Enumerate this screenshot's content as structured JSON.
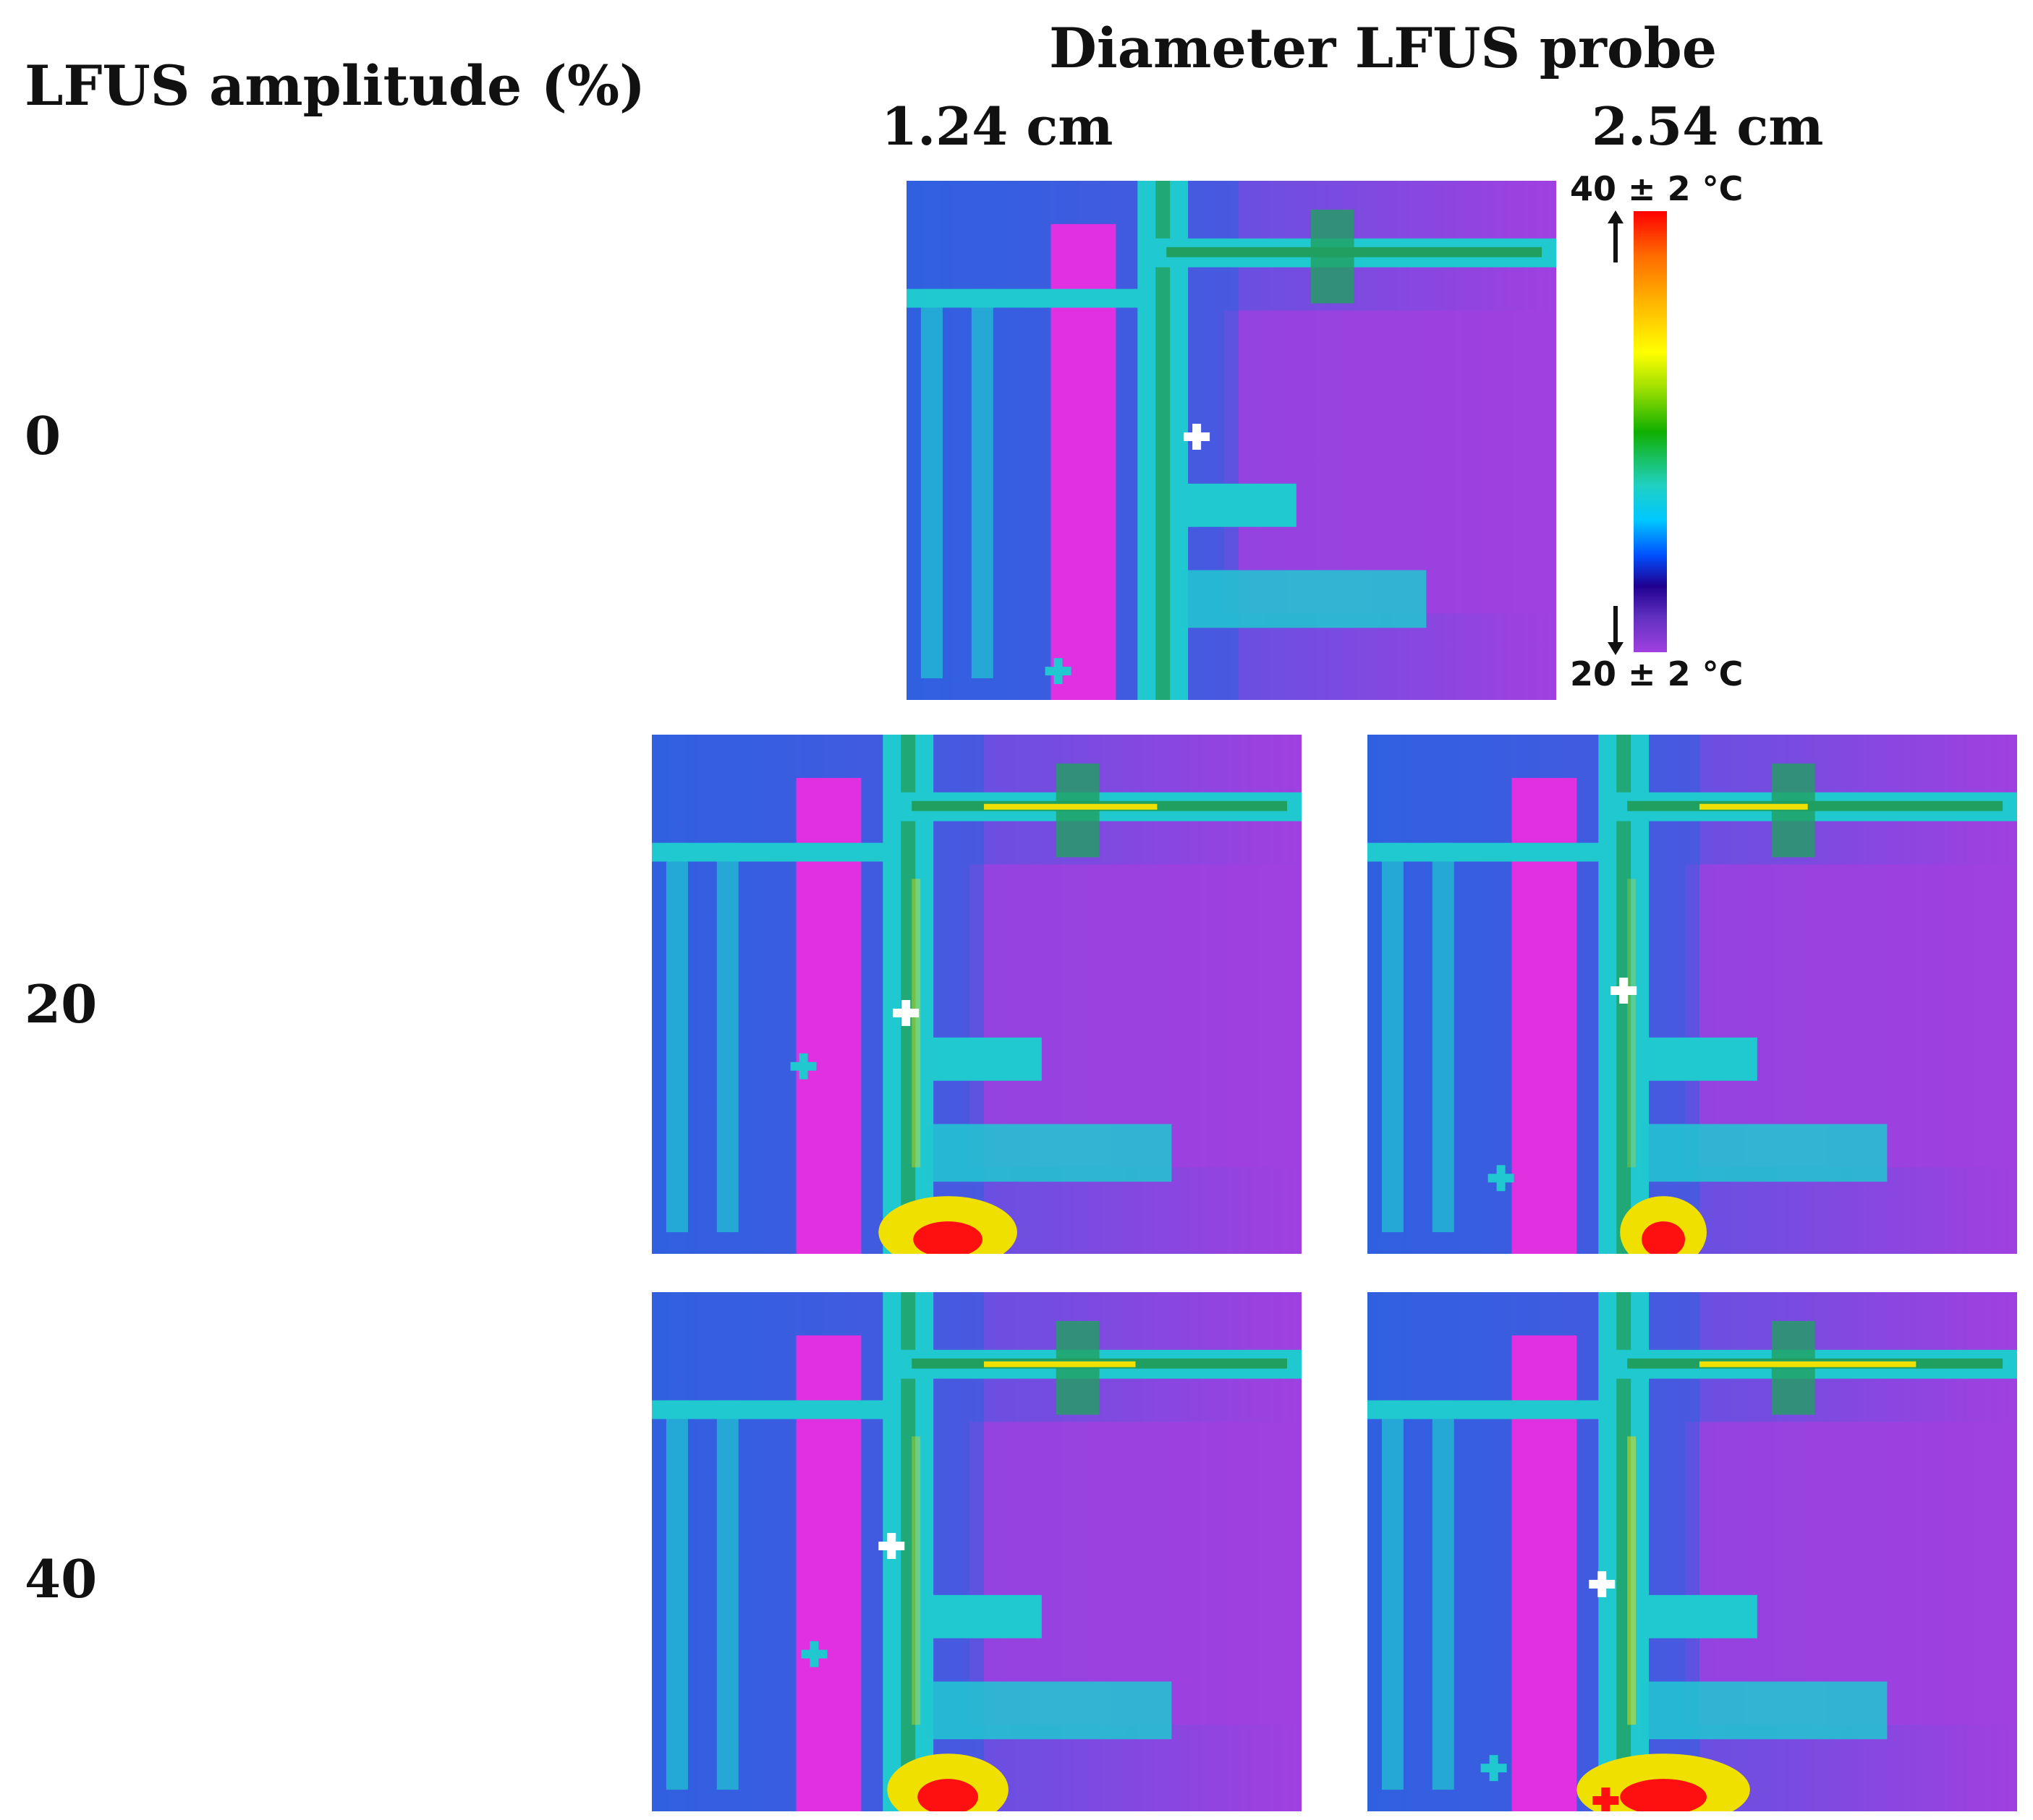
{
  "figure": {
    "amplitude_title": "LFUS amplitude (%)",
    "diameter_title": "Diameter LFUS probe",
    "diameters": [
      "1.24 cm",
      "2.54 cm"
    ],
    "amplitudes": [
      "0",
      "20",
      "40"
    ],
    "colorbar": {
      "max_label": "40 ± 2 °C",
      "min_label": "20 ± 2 °C"
    }
  },
  "colors": {
    "cold": "#a040e0",
    "magenta": "#e030e0",
    "blue": "#3060e0",
    "cyan": "#20c8d0",
    "green": "#20a060",
    "yellow": "#f0e000",
    "red": "#ff1010"
  }
}
